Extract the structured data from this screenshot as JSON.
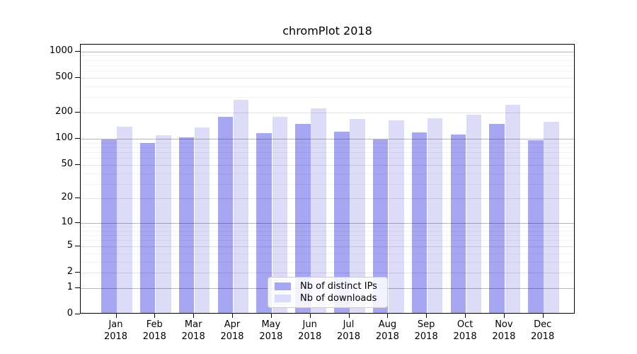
{
  "title": "chromPlot 2018",
  "chart_data": {
    "type": "bar",
    "title": "chromPlot 2018",
    "categories": [
      "Jan",
      "Feb",
      "Mar",
      "Apr",
      "May",
      "Jun",
      "Jul",
      "Aug",
      "Sep",
      "Oct",
      "Nov",
      "Dec"
    ],
    "year_label": "2018",
    "series": [
      {
        "name": "Nb of distinct IPs",
        "color": "#a6a6f2",
        "values": [
          94,
          86,
          100,
          171,
          112,
          143,
          117,
          94,
          114,
          108,
          143,
          93
        ]
      },
      {
        "name": "Nb of downloads",
        "color": "#dcdcf8",
        "values": [
          133,
          105,
          130,
          270,
          171,
          215,
          162,
          158,
          166,
          182,
          238,
          151
        ]
      }
    ],
    "xlabel": "",
    "ylabel": "",
    "y_scale": "log10(value+1)",
    "ylim": [
      0,
      1200
    ],
    "y_ticks": [
      0,
      1,
      2,
      5,
      10,
      20,
      50,
      100,
      200,
      500,
      1000
    ],
    "y_major_gridlines": [
      1,
      10,
      100,
      1000
    ],
    "y_unlabeled_minor_gridlines": [
      3,
      4,
      6,
      7,
      8,
      9,
      30,
      40,
      60,
      70,
      80,
      90,
      300,
      400,
      600,
      700,
      800,
      900
    ],
    "grid": true,
    "legend_position": "lower center (inside plot)"
  },
  "legend": {
    "background_opacity": 0.85,
    "border_color": "#cccccc"
  }
}
